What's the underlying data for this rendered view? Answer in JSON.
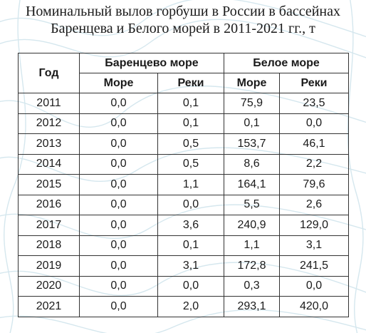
{
  "title": {
    "line1": "Номинальный вылов горбуши в России в бассейнах",
    "line2": "Баренцева и Белого морей в 2011-2021 гг., т"
  },
  "table": {
    "year_header": "Год",
    "group_headers": [
      "Баренцево море",
      "Белое море"
    ],
    "sub_headers": [
      "Море",
      "Реки",
      "Море",
      "Реки"
    ],
    "rows": [
      [
        "2011",
        "0,0",
        "0,1",
        "75,9",
        "23,5"
      ],
      [
        "2012",
        "0,0",
        "0,1",
        "0,1",
        "0,0"
      ],
      [
        "2013",
        "0,0",
        "0,5",
        "153,7",
        "46,1"
      ],
      [
        "2014",
        "0,0",
        "0,5",
        "8,6",
        "2,2"
      ],
      [
        "2015",
        "0,0",
        "1,1",
        "164,1",
        "79,6"
      ],
      [
        "2016",
        "0,0",
        "0,0",
        "5,5",
        "2,6"
      ],
      [
        "2017",
        "0,0",
        "3,6",
        "240,9",
        "129,0"
      ],
      [
        "2018",
        "0,0",
        "0,1",
        "1,1",
        "3,1"
      ],
      [
        "2019",
        "0,0",
        "3,1",
        "172,8",
        "241,5"
      ],
      [
        "2020",
        "0,0",
        "0,0",
        "0,3",
        "0,0"
      ],
      [
        "2021",
        "0,0",
        "2,0",
        "293,1",
        "420,0"
      ]
    ]
  },
  "colors": {
    "background": "#ffffff",
    "wave_line": "#d5e7ee",
    "border": "#333333",
    "text": "#1a1a1a"
  }
}
